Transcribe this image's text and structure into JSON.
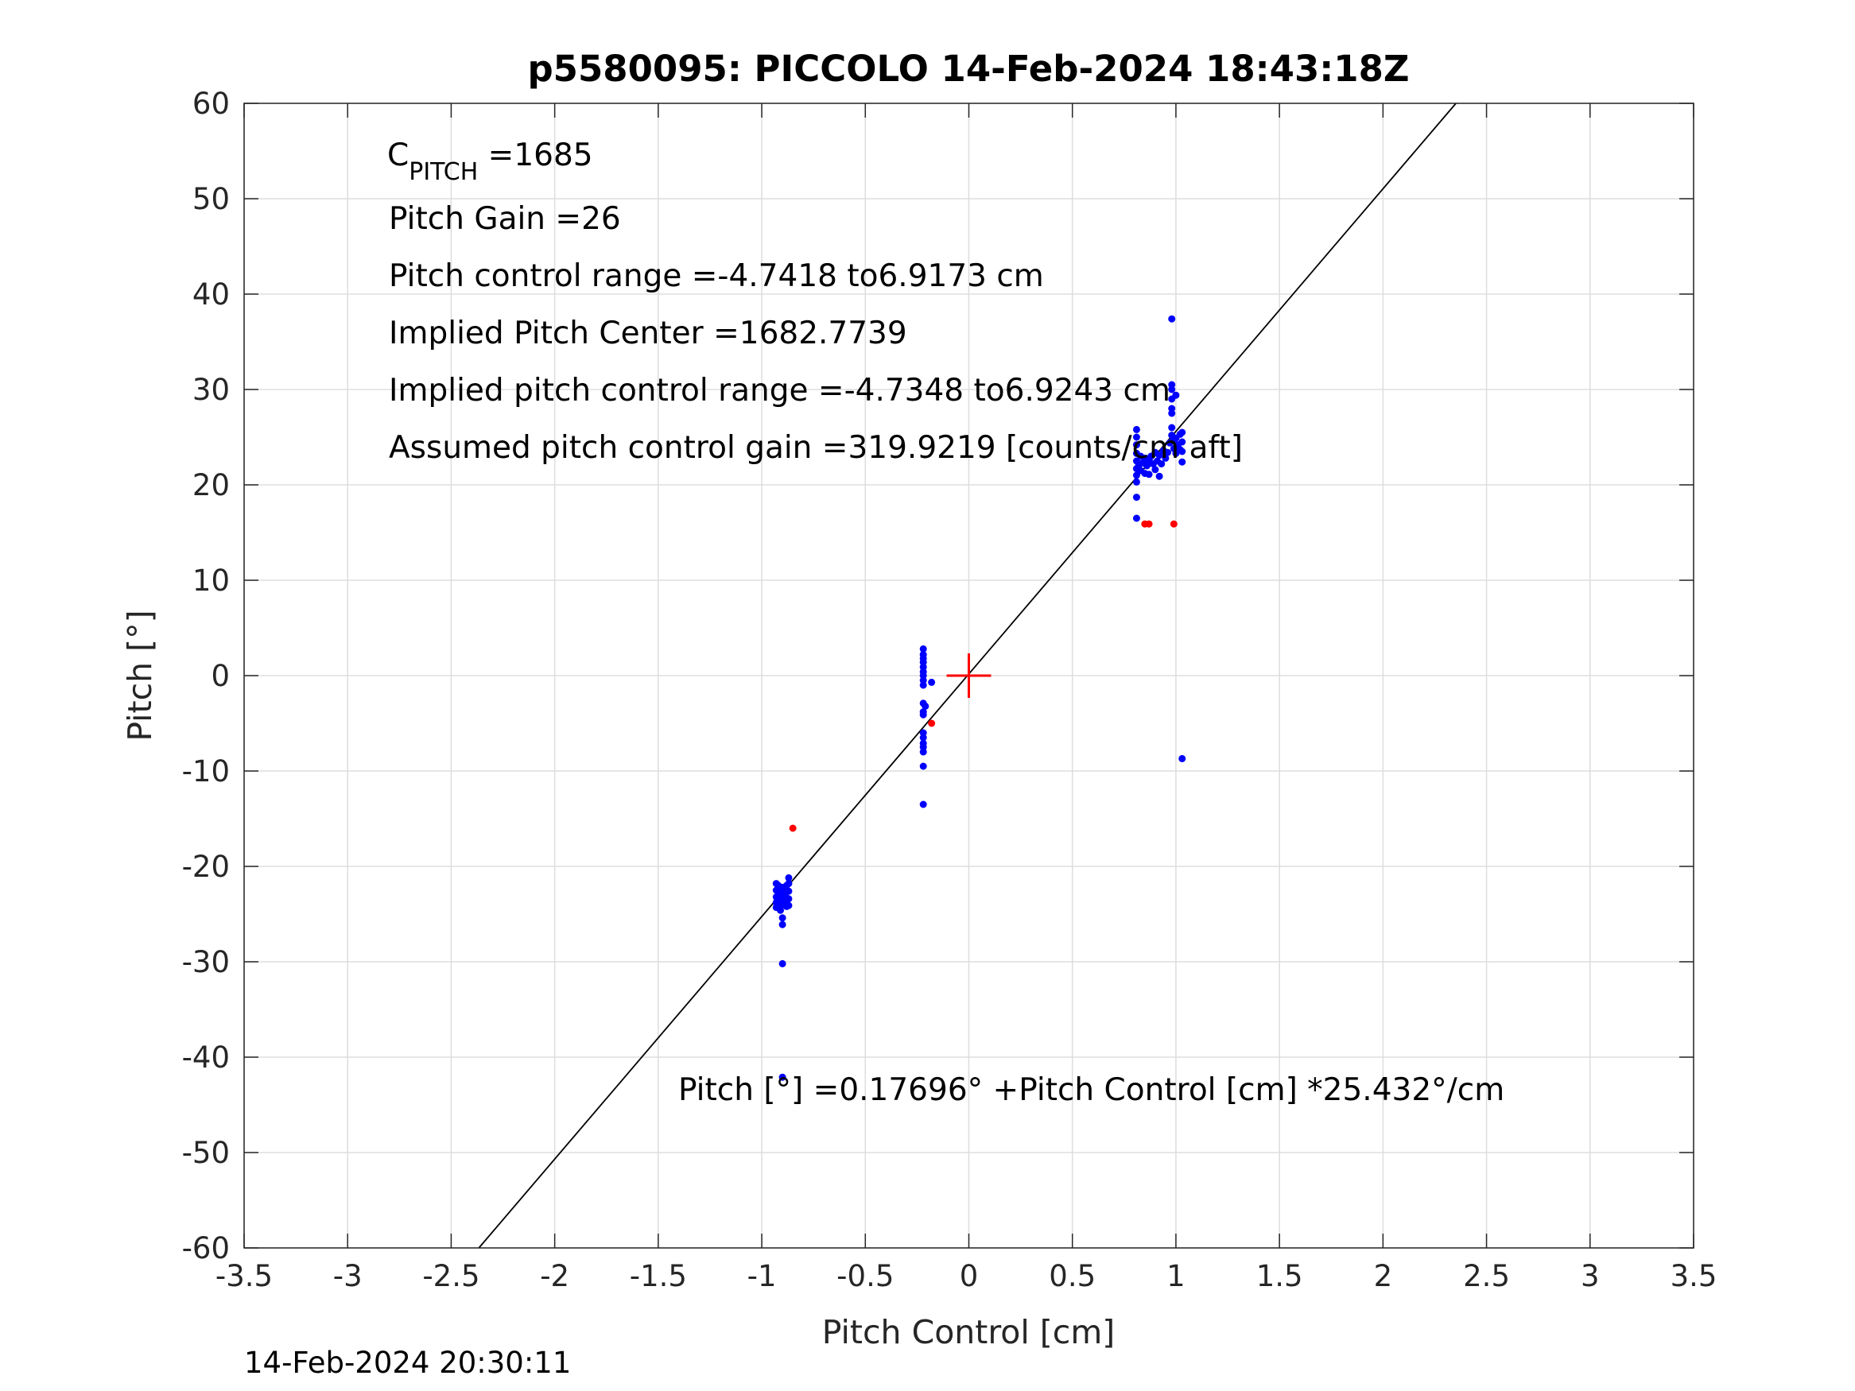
{
  "chart_data": {
    "type": "scatter",
    "title": "p5580095: PICCOLO 14-Feb-2024 18:43:18Z",
    "xlabel": "Pitch Control [cm]",
    "ylabel": "Pitch [°]",
    "xlim": [
      -3.5,
      3.5
    ],
    "ylim": [
      -60,
      60
    ],
    "xticks": [
      "-3.5",
      "-3",
      "-2.5",
      "-2",
      "-1.5",
      "-1",
      "-0.5",
      "0",
      "0.5",
      "1",
      "1.5",
      "2",
      "2.5",
      "3",
      "3.5"
    ],
    "yticks": [
      "60",
      "50",
      "40",
      "30",
      "20",
      "10",
      "0",
      "-10",
      "-20",
      "-30",
      "-40",
      "-50",
      "-60"
    ],
    "grid": true,
    "annotations": {
      "c_pitch_main": "C",
      "c_pitch_sub": "PITCH",
      "c_pitch_value": " =1685",
      "pitch_gain": "Pitch Gain =26",
      "control_range": "Pitch control range =-4.7418 to6.9173 cm",
      "implied_center": "Implied Pitch Center =1682.7739",
      "implied_range": "Implied pitch control range =-4.7348 to6.9243 cm",
      "assumed_gain": "Assumed pitch control gain =319.9219 [counts/cm aft]",
      "fit_equation": "Pitch [°] =0.17696° +Pitch Control [cm] *25.432°/cm"
    },
    "timestamp": "14-Feb-2024 20:30:11",
    "fit_line": {
      "intercept": 0.17696,
      "slope": 25.432
    },
    "center_marker": {
      "x": 0,
      "y": 0
    },
    "colors": {
      "good": "#0000ff",
      "bad": "#ff0000",
      "fit": "#000000",
      "center": "#ff0000",
      "grid": "#dddddd"
    },
    "series": [
      {
        "name": "good",
        "color": "#0000ff",
        "points": [
          [
            -0.93,
            -21.8
          ],
          [
            -0.93,
            -22.5
          ],
          [
            -0.93,
            -23.2
          ],
          [
            -0.93,
            -23.8
          ],
          [
            -0.93,
            -24.3
          ],
          [
            -0.92,
            -22
          ],
          [
            -0.92,
            -23
          ],
          [
            -0.92,
            -24
          ],
          [
            -0.91,
            -22.4
          ],
          [
            -0.91,
            -23.6
          ],
          [
            -0.91,
            -24.6
          ],
          [
            -0.9,
            -22.2
          ],
          [
            -0.9,
            -23.1
          ],
          [
            -0.9,
            -24
          ],
          [
            -0.9,
            -25.4
          ],
          [
            -0.9,
            -26.1
          ],
          [
            -0.9,
            -30.2
          ],
          [
            -0.9,
            -42.1
          ],
          [
            -0.89,
            -22.8
          ],
          [
            -0.89,
            -23.9
          ],
          [
            -0.88,
            -22
          ],
          [
            -0.88,
            -23.3
          ],
          [
            -0.88,
            -24.2
          ],
          [
            -0.87,
            -21.2
          ],
          [
            -0.87,
            -21.8
          ],
          [
            -0.87,
            -22.6
          ],
          [
            -0.87,
            -23.4
          ],
          [
            -0.87,
            -24.1
          ],
          [
            -0.22,
            2.8
          ],
          [
            -0.22,
            2.2
          ],
          [
            -0.22,
            1.8
          ],
          [
            -0.22,
            1.4
          ],
          [
            -0.22,
            0.9
          ],
          [
            -0.22,
            0.4
          ],
          [
            -0.22,
            0
          ],
          [
            -0.22,
            -0.5
          ],
          [
            -0.22,
            -1
          ],
          [
            -0.18,
            -0.7
          ],
          [
            -0.22,
            -2.9
          ],
          [
            -0.21,
            -3.2
          ],
          [
            -0.22,
            -3.8
          ],
          [
            -0.22,
            -4.1
          ],
          [
            -0.22,
            -6
          ],
          [
            -0.22,
            -6.5
          ],
          [
            -0.22,
            -7.1
          ],
          [
            -0.22,
            -7.5
          ],
          [
            -0.22,
            -8
          ],
          [
            -0.22,
            -9.5
          ],
          [
            -0.22,
            -13.5
          ],
          [
            0.81,
            25.8
          ],
          [
            0.81,
            25
          ],
          [
            0.81,
            24.2
          ],
          [
            0.81,
            23.3
          ],
          [
            0.81,
            22.5
          ],
          [
            0.81,
            21.7
          ],
          [
            0.81,
            21
          ],
          [
            0.81,
            20.3
          ],
          [
            0.81,
            18.7
          ],
          [
            0.81,
            16.5
          ],
          [
            0.82,
            22
          ],
          [
            0.83,
            21.5
          ],
          [
            0.83,
            23
          ],
          [
            0.84,
            22.3
          ],
          [
            0.85,
            21.2
          ],
          [
            0.85,
            22.8
          ],
          [
            0.86,
            22
          ],
          [
            0.87,
            22.6
          ],
          [
            0.87,
            21.1
          ],
          [
            0.88,
            23
          ],
          [
            0.89,
            22.2
          ],
          [
            0.9,
            23.4
          ],
          [
            0.9,
            21.6
          ],
          [
            0.91,
            22.5
          ],
          [
            0.92,
            20.9
          ],
          [
            0.92,
            23.1
          ],
          [
            0.93,
            22.2
          ],
          [
            0.94,
            23.6
          ],
          [
            0.95,
            22.8
          ],
          [
            0.96,
            23.4
          ],
          [
            0.97,
            24.4
          ],
          [
            0.98,
            37.4
          ],
          [
            0.98,
            30.5
          ],
          [
            0.98,
            30
          ],
          [
            0.98,
            29
          ],
          [
            0.98,
            28
          ],
          [
            0.98,
            27.5
          ],
          [
            0.98,
            26
          ],
          [
            0.98,
            25.2
          ],
          [
            0.99,
            24.8
          ],
          [
            0.99,
            23.8
          ],
          [
            1.0,
            24.9
          ],
          [
            1.0,
            23.3
          ],
          [
            1.01,
            24.2
          ],
          [
            1.02,
            25.3
          ],
          [
            1.02,
            23.7
          ],
          [
            1.03,
            25.5
          ],
          [
            1.03,
            24.5
          ],
          [
            1.03,
            23.5
          ],
          [
            1.03,
            22.4
          ],
          [
            1.03,
            -8.7
          ],
          [
            1.0,
            29.4
          ]
        ]
      },
      {
        "name": "bad",
        "color": "#ff0000",
        "points": [
          [
            -0.85,
            -16
          ],
          [
            -0.18,
            -5
          ],
          [
            0.85,
            15.9
          ],
          [
            0.87,
            15.9
          ],
          [
            0.99,
            15.9
          ]
        ]
      }
    ]
  }
}
